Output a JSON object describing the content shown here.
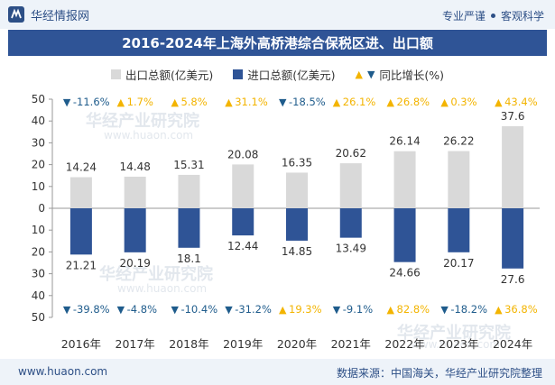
{
  "header": {
    "brand": "华经情报网",
    "slogan_left": "专业严谨",
    "slogan_right": "客观科学"
  },
  "title": "2016-2024年上海外高桥港综合保税区进、出口额",
  "legend": {
    "export": "出口总额(亿美元)",
    "import": "进口总额(亿美元)",
    "growth": "同比增长(%)"
  },
  "watermark": {
    "cn": "华经产业研究院",
    "url": "www.huaon.com"
  },
  "footer": {
    "site": "www.huaon.com",
    "source": "数据来源：中国海关，华经产业研究院整理"
  },
  "colors": {
    "export_bar": "#d9d9d9",
    "import_bar": "#2f5496",
    "up": "#f3b400",
    "down": "#1f5c8c",
    "header_bg": "#2f5496",
    "grid": "#dddddd"
  },
  "chart_data": {
    "type": "bar",
    "categories": [
      "2016年",
      "2017年",
      "2018年",
      "2019年",
      "2020年",
      "2021年",
      "2022年",
      "2023年",
      "2024年"
    ],
    "series": [
      {
        "name": "出口总额(亿美元)",
        "values": [
          14.24,
          14.48,
          15.31,
          20.08,
          16.35,
          20.62,
          26.14,
          26.22,
          37.6
        ]
      },
      {
        "name": "进口总额(亿美元)",
        "values": [
          21.21,
          20.19,
          18.1,
          12.44,
          14.85,
          13.49,
          24.66,
          20.17,
          27.6
        ]
      }
    ],
    "export_growth": [
      {
        "dir": "down",
        "label": "-11.6%"
      },
      {
        "dir": "up",
        "label": "1.7%"
      },
      {
        "dir": "up",
        "label": "5.8%"
      },
      {
        "dir": "up",
        "label": "31.1%"
      },
      {
        "dir": "down",
        "label": "-18.5%"
      },
      {
        "dir": "up",
        "label": "26.1%"
      },
      {
        "dir": "up",
        "label": "26.8%"
      },
      {
        "dir": "up",
        "label": "0.3%"
      },
      {
        "dir": "up",
        "label": "43.4%"
      }
    ],
    "import_growth": [
      {
        "dir": "down",
        "label": "-39.8%"
      },
      {
        "dir": "down",
        "label": "-4.8%"
      },
      {
        "dir": "down",
        "label": "-10.4%"
      },
      {
        "dir": "down",
        "label": "-31.2%"
      },
      {
        "dir": "up",
        "label": "19.3%"
      },
      {
        "dir": "down",
        "label": "-9.1%"
      },
      {
        "dir": "up",
        "label": "82.8%"
      },
      {
        "dir": "down",
        "label": "-18.2%"
      },
      {
        "dir": "up",
        "label": "36.8%"
      }
    ],
    "y_ticks": [
      "50",
      "40",
      "30",
      "20",
      "10",
      "0",
      "10",
      "20",
      "30",
      "40",
      "50"
    ],
    "ylim": [
      -50,
      50
    ],
    "legend_position": "top-center",
    "grid": false
  }
}
